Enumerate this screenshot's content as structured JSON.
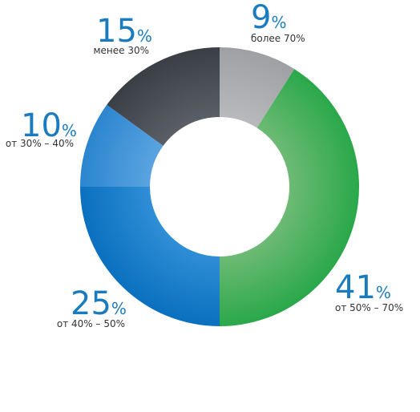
{
  "chart_data": {
    "type": "pie",
    "variant": "donut",
    "start": "12 o'clock, clockwise",
    "percent_sign": "%",
    "slices": [
      {
        "label": "более 70%",
        "value": 9,
        "display": "9",
        "color": "#b8b9bc",
        "color_dark": "#9ea0a3"
      },
      {
        "label": "от 50% – 70%",
        "value": 41,
        "display": "41",
        "color": "#6dba74",
        "color_dark": "#2aa84a"
      },
      {
        "label": "от 40% – 50%",
        "value": 25,
        "display": "25",
        "color": "#2f8ed6",
        "color_dark": "#0a70bf"
      },
      {
        "label": "от 30% – 40%",
        "value": 10,
        "display": "10",
        "color": "#5aa3e0",
        "color_dark": "#2b86cf"
      },
      {
        "label": "менее 30%",
        "value": 15,
        "display": "15",
        "color": "#5a5e66",
        "color_dark": "#3a3e45"
      }
    ]
  }
}
